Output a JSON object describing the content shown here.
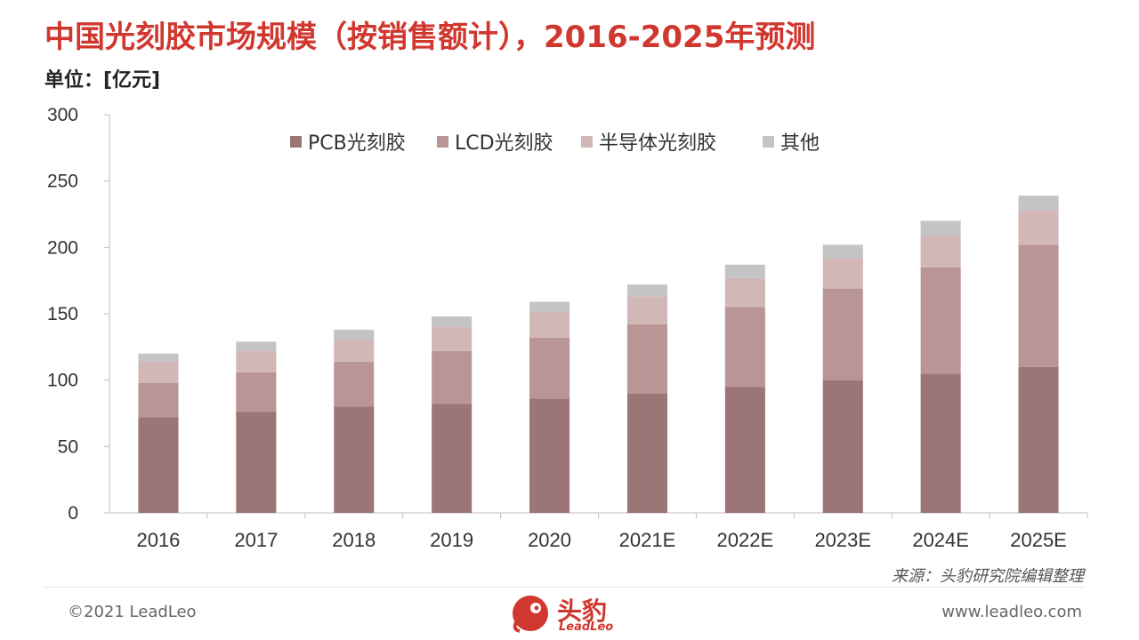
{
  "header": {
    "title": "中国光刻胶市场规模（按销售额计），2016-2025年预测",
    "unit": "单位：[亿元]"
  },
  "colors": {
    "title": "#d0372f",
    "series": [
      "#9c7576",
      "#b99596",
      "#d1b7b6",
      "#c4c4c4"
    ]
  },
  "chart_data": {
    "type": "bar",
    "stacked": true,
    "categories": [
      "2016",
      "2017",
      "2018",
      "2019",
      "2020",
      "2021E",
      "2022E",
      "2023E",
      "2024E",
      "2025E"
    ],
    "series": [
      {
        "name": "PCB光刻胶",
        "values": [
          72,
          76,
          80,
          82,
          86,
          90,
          95,
          100,
          105,
          110
        ]
      },
      {
        "name": "LCD光刻胶",
        "values": [
          26,
          30,
          34,
          40,
          46,
          52,
          60,
          69,
          80,
          92
        ]
      },
      {
        "name": "半导体光刻胶",
        "values": [
          16,
          16,
          17,
          18,
          19,
          21,
          22,
          23,
          24,
          26
        ]
      },
      {
        "name": "其他",
        "values": [
          6,
          7,
          7,
          8,
          8,
          9,
          10,
          10,
          11,
          11
        ]
      }
    ],
    "ylim": [
      0,
      300
    ],
    "yticks": [
      0,
      50,
      100,
      150,
      200,
      250,
      300
    ],
    "legend": "top-center",
    "grid": false
  },
  "footer": {
    "source": "来源：头豹研究院编辑整理",
    "copyright": "©2021 LeadLeo",
    "website": "www.leadleo.com",
    "logo_text": "头豹",
    "logo_sub": "LeadLeo"
  }
}
